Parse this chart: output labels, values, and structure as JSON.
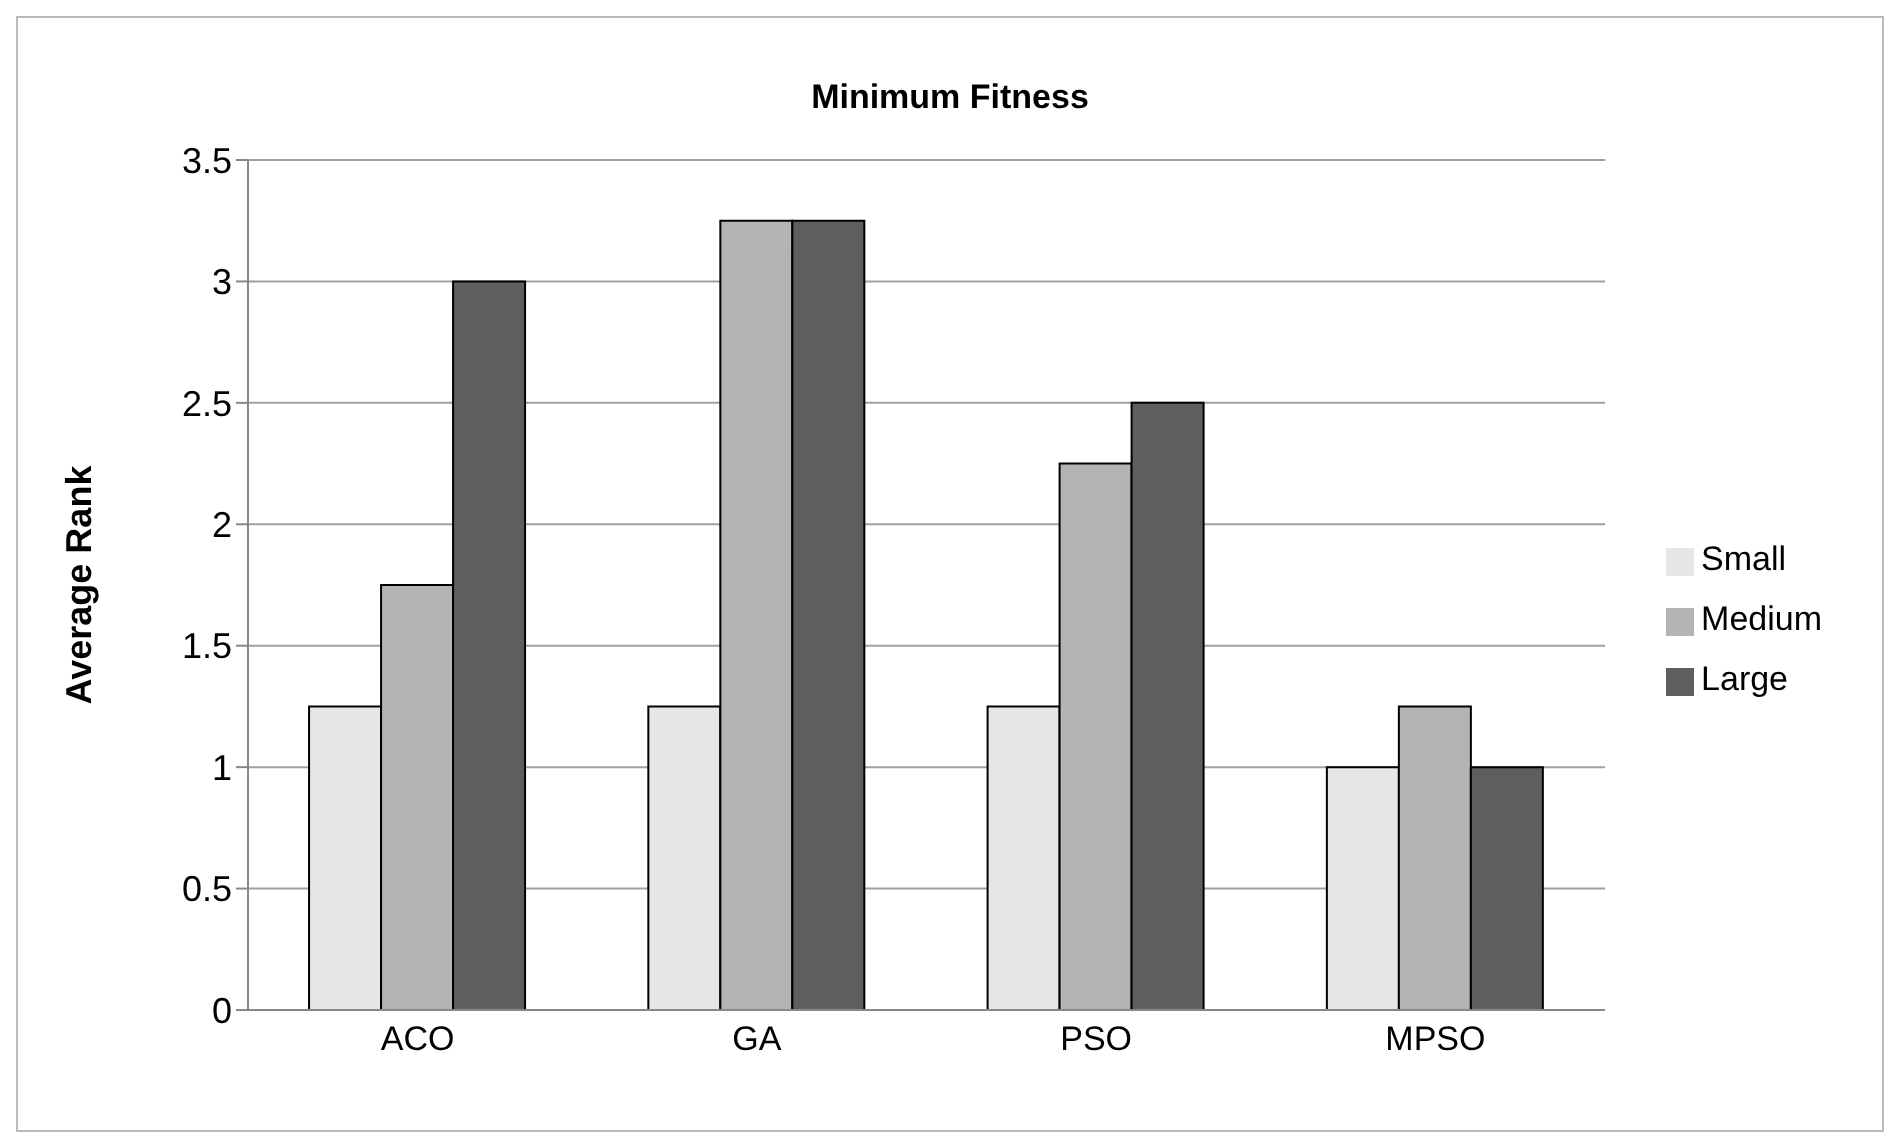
{
  "chart_data": {
    "type": "bar",
    "title": "Minimum Fitness",
    "ylabel": "Average Rank",
    "categories": [
      "ACO",
      "GA",
      "PSO",
      "MPSO"
    ],
    "series": [
      {
        "name": "Small",
        "color": "#e6e6e6",
        "values": [
          1.25,
          1.25,
          1.25,
          1
        ]
      },
      {
        "name": "Medium",
        "color": "#b4b4b4",
        "values": [
          1.75,
          3.25,
          2.25,
          1.25
        ]
      },
      {
        "name": "Large",
        "color": "#5e5e5e",
        "values": [
          3,
          3.25,
          2.5,
          1
        ]
      }
    ],
    "ylim": [
      0,
      3.5
    ],
    "yticks": [
      0,
      0.5,
      1,
      1.5,
      2,
      2.5,
      3,
      3.5
    ],
    "grid": "y",
    "legend": "right"
  }
}
